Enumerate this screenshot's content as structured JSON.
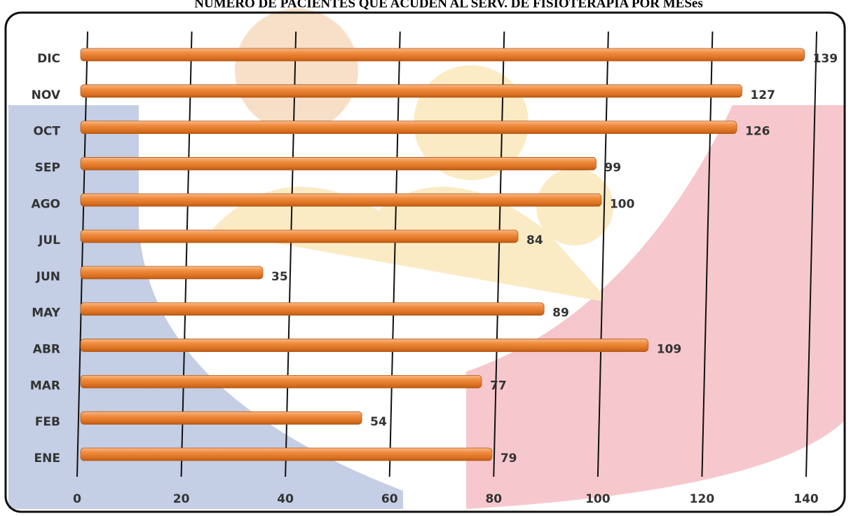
{
  "chart_data": {
    "type": "bar",
    "orientation": "horizontal",
    "title": "NUMERO DE PACIENTES QUE ACUDEN AL SERV. DE FISIOTERAPIA POR MESes",
    "categories": [
      "ENE",
      "FEB",
      "MAR",
      "ABR",
      "MAY",
      "JUN",
      "JUL",
      "AGO",
      "SEP",
      "OCT",
      "NOV",
      "DIC"
    ],
    "values": [
      79,
      54,
      77,
      109,
      89,
      35,
      84,
      100,
      99,
      126,
      127,
      139
    ],
    "color": "#ef8a3c",
    "xlim": [
      0,
      140
    ],
    "xticks": [
      0,
      20,
      40,
      60,
      80,
      100,
      120,
      140
    ],
    "grid": true
  }
}
